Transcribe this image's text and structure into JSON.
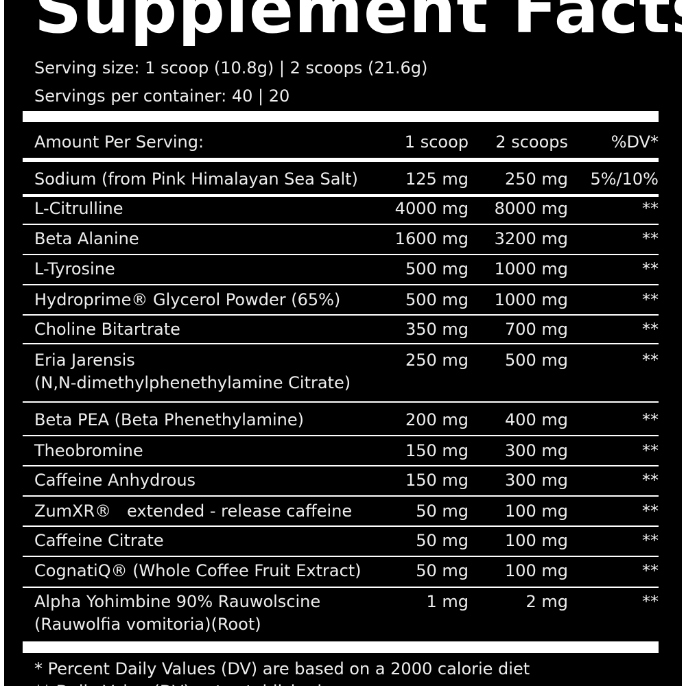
{
  "header": {
    "title": "Supplement Facts",
    "serving_size": "Serving size: 1 scoop (10.8g) | 2 scoops (21.6g)",
    "servings_per_container": "Servings per container: 40 | 20"
  },
  "table": {
    "columns": [
      "Amount Per Serving:",
      "1 scoop",
      "2 scoops",
      "%DV*"
    ],
    "rows": [
      [
        [
          "Sodium (from Pink Himalayan Sea Salt)"
        ],
        "125 mg",
        "250 mg",
        "5%/10%"
      ],
      [
        [
          "L-Citrulline"
        ],
        "4000 mg",
        "8000 mg",
        "**"
      ],
      [
        [
          "Beta Alanine"
        ],
        "1600 mg",
        "3200 mg",
        "**"
      ],
      [
        [
          "L-Tyrosine"
        ],
        "500 mg",
        "1000 mg",
        "**"
      ],
      [
        [
          "Hydroprime® Glycerol Powder (65%)"
        ],
        "500 mg",
        "1000 mg",
        "**"
      ],
      [
        [
          "Choline Bitartrate"
        ],
        "350 mg",
        "700 mg",
        "**"
      ],
      [
        [
          "Eria Jarensis",
          "(N,N-dimethylphenethylamine Citrate)"
        ],
        "250 mg",
        "500 mg",
        "**"
      ],
      [
        [
          "Beta PEA (Beta Phenethylamine)"
        ],
        "200 mg",
        "400 mg",
        "**"
      ],
      [
        [
          "Theobromine"
        ],
        "150 mg",
        "300 mg",
        "**"
      ],
      [
        [
          "Caffeine Anhydrous"
        ],
        "150 mg",
        "300 mg",
        "**"
      ],
      [
        [
          "ZumXR®   extended - release caffeine"
        ],
        "50 mg",
        "100 mg",
        "**"
      ],
      [
        [
          "Caffeine Citrate"
        ],
        "50 mg",
        "100 mg",
        "**"
      ],
      [
        [
          "CognatiQ® (Whole Coffee Fruit Extract)"
        ],
        "50 mg",
        "100 mg",
        "**"
      ],
      [
        [
          "Alpha Yohimbine 90% Rauwolscine",
          "(Rauwolfia vomitoria)(Root)"
        ],
        "1 mg",
        "2 mg",
        "**"
      ]
    ]
  },
  "footnotes": [
    "* Percent Daily Values (DV) are based on a 2000 calorie diet",
    "** Daily Value (DV) not established"
  ]
}
